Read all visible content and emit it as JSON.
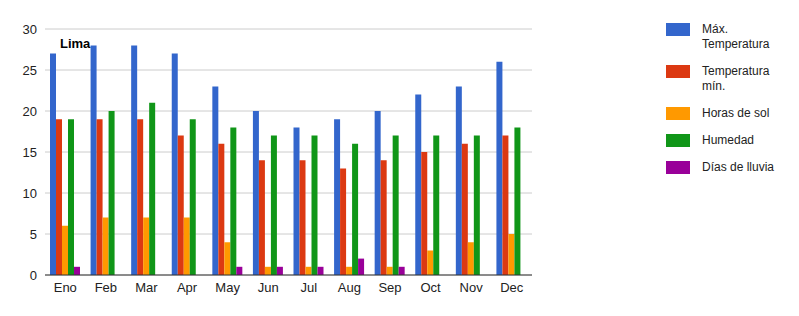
{
  "chart_data": {
    "type": "bar",
    "title": "Lima",
    "categories": [
      "Eno",
      "Feb",
      "Mar",
      "Apr",
      "May",
      "Jun",
      "Jul",
      "Aug",
      "Sep",
      "Oct",
      "Nov",
      "Dec"
    ],
    "series": [
      {
        "name": "Máx. Temperatura",
        "color": "#3366cc",
        "values": [
          27,
          28,
          28,
          27,
          23,
          20,
          18,
          19,
          20,
          22,
          23,
          26
        ]
      },
      {
        "name": "Temperatura mín.",
        "color": "#dc3912",
        "values": [
          19,
          19,
          19,
          17,
          16,
          14,
          14,
          13,
          14,
          15,
          16,
          17
        ]
      },
      {
        "name": "Horas de sol",
        "color": "#ff9900",
        "values": [
          6,
          7,
          7,
          7,
          4,
          1,
          1,
          1,
          1,
          3,
          4,
          5
        ]
      },
      {
        "name": "Humedad",
        "color": "#109618",
        "values": [
          19,
          20,
          21,
          19,
          18,
          17,
          17,
          16,
          17,
          17,
          17,
          18
        ]
      },
      {
        "name": "Días de lluvia",
        "color": "#990099",
        "values": [
          1,
          0,
          0,
          0,
          1,
          1,
          1,
          2,
          1,
          0,
          0,
          0
        ]
      }
    ],
    "ylim": [
      0,
      30
    ],
    "yticks": [
      0,
      5,
      10,
      15,
      20,
      25,
      30
    ],
    "grid": true,
    "legend": "right"
  }
}
